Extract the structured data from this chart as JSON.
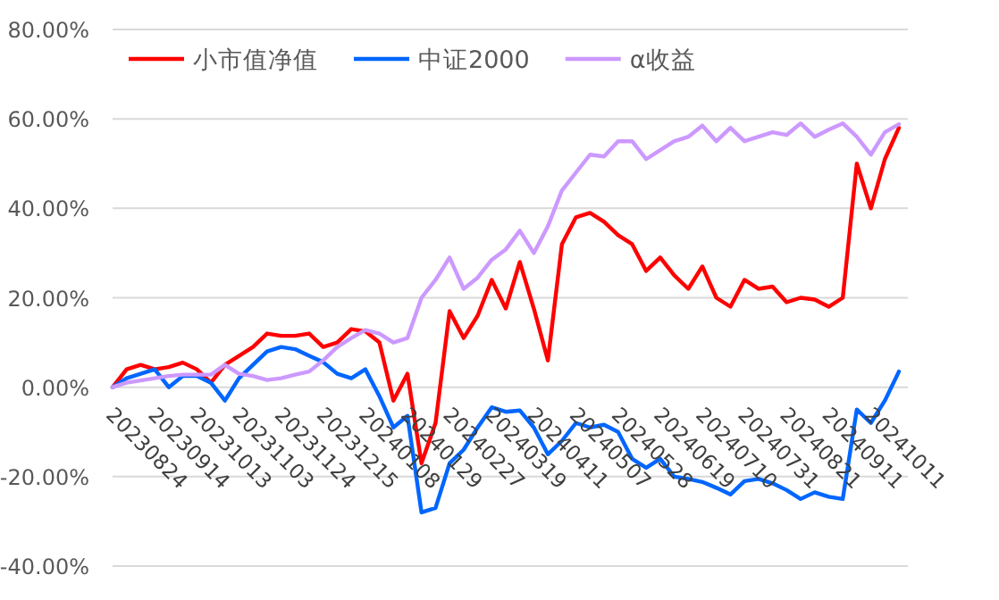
{
  "chart_data": {
    "type": "line",
    "categories": [
      "20230824",
      null,
      null,
      "20230914",
      null,
      null,
      "20231013",
      null,
      null,
      "20231103",
      null,
      null,
      "20231124",
      null,
      null,
      "20231215",
      null,
      null,
      "20240108",
      null,
      null,
      "20240129",
      null,
      null,
      "20240227",
      null,
      null,
      "20240319",
      null,
      null,
      "20240411",
      null,
      null,
      "20240507",
      null,
      null,
      "20240528",
      null,
      null,
      "20240619",
      null,
      null,
      "20240710",
      null,
      null,
      "20240731",
      null,
      null,
      "20240821",
      null,
      null,
      "20240911",
      null,
      null,
      "20241011",
      null,
      null
    ],
    "series": [
      {
        "name": "小市值净值",
        "color": "#ff0000",
        "values": [
          0,
          4,
          5,
          4,
          4.5,
          5.5,
          4,
          1,
          5,
          7,
          9,
          12,
          11.5,
          11.5,
          12,
          9,
          10,
          13,
          12.5,
          10,
          -3,
          3,
          -17,
          -8,
          17,
          11,
          16,
          24,
          17.6,
          28,
          17.6,
          6,
          32,
          38,
          39,
          37,
          34,
          32,
          26,
          29,
          25,
          22,
          27,
          20,
          18,
          24,
          22,
          22.5,
          19,
          20,
          19.6,
          18,
          20,
          50,
          40,
          51,
          58
        ]
      },
      {
        "name": "中证2000",
        "color": "#0066ff",
        "values": [
          0,
          2,
          3,
          4,
          0,
          2.5,
          2.5,
          1,
          -3,
          2,
          5,
          8,
          9,
          8.5,
          7,
          5.6,
          3,
          2,
          4,
          -2,
          -9,
          -6.4,
          -28,
          -27,
          -17,
          -14,
          -9,
          -4.5,
          -5.5,
          -5.2,
          -9,
          -15,
          -12,
          -8,
          -9,
          -8.4,
          -10,
          -16,
          -18,
          -16,
          -20,
          -20.5,
          -21.2,
          -22.5,
          -24,
          -21,
          -20.5,
          -21.5,
          -23,
          -25,
          -23.5,
          -24.5,
          -25,
          -5,
          -8,
          -3,
          3.5
        ]
      },
      {
        "name": "α收益",
        "color": "#cc99ff",
        "values": [
          0,
          1,
          1.5,
          2,
          2.5,
          2.8,
          2.8,
          2.8,
          5,
          3,
          2.5,
          1.6,
          2,
          2.8,
          3.5,
          6,
          9,
          11,
          12.8,
          12,
          10,
          11,
          20,
          24,
          29,
          22,
          24.5,
          28.5,
          30.8,
          35,
          30,
          36,
          44,
          48,
          52,
          51.6,
          55,
          55,
          51,
          53,
          55,
          56,
          58.5,
          55,
          58,
          55,
          56,
          57,
          56.4,
          59,
          56,
          57.6,
          59,
          56,
          52,
          57,
          58.8
        ]
      }
    ],
    "ylim": [
      -40,
      80
    ],
    "yticks": [
      {
        "value": -40,
        "label": "-40.00%"
      },
      {
        "value": -20,
        "label": "-20.00%"
      },
      {
        "value": 0,
        "label": "0.00%"
      },
      {
        "value": 20,
        "label": "20.00%"
      },
      {
        "value": 40,
        "label": "40.00%"
      },
      {
        "value": 60,
        "label": "60.00%"
      },
      {
        "value": 80,
        "label": "80.00%"
      }
    ],
    "grid": "y",
    "legend": "top left"
  }
}
